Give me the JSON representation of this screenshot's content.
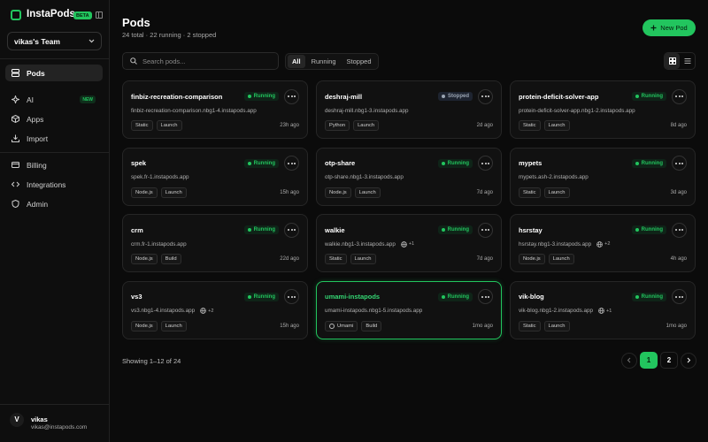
{
  "sidebar": {
    "brand": "InstaPods",
    "badge": "BETA",
    "team": "vikas's Team",
    "nav": [
      {
        "label": "Pods"
      },
      {
        "label": "AI",
        "badge": "NEW"
      },
      {
        "label": "Apps"
      },
      {
        "label": "Import"
      }
    ],
    "nav_secondary": [
      {
        "label": "Billing"
      },
      {
        "label": "Integrations"
      },
      {
        "label": "Admin"
      }
    ],
    "user": {
      "initial": "V",
      "name": "vikas",
      "email": "vikas@instapods.com"
    }
  },
  "header": {
    "title": "Pods",
    "subtitle": "24 total · 22 running · 2 stopped",
    "new_button": "New Pod"
  },
  "toolbar": {
    "search_placeholder": "Search pods...",
    "filters": [
      "All",
      "Running",
      "Stopped"
    ]
  },
  "pods": [
    {
      "name": "finbiz-recreation-comparison",
      "status": "Running",
      "url": "finbiz-recreation-comparison.nbg1-4.instapods.app",
      "tags": [
        "Static",
        "Launch"
      ],
      "time": "23h ago"
    },
    {
      "name": "deshraj-mill",
      "status": "Stopped",
      "url": "deshraj-mill.nbg1-3.instapods.app",
      "tags": [
        "Python",
        "Launch"
      ],
      "time": "2d ago"
    },
    {
      "name": "protein-deficit-solver-app",
      "status": "Running",
      "url": "protein-deficit-solver-app.nbg1-2.instapods.app",
      "tags": [
        "Static",
        "Launch"
      ],
      "time": "8d ago"
    },
    {
      "name": "spek",
      "status": "Running",
      "url": "spek.fr-1.instapods.app",
      "tags": [
        "Node.js",
        "Launch"
      ],
      "time": "15h ago"
    },
    {
      "name": "otp-share",
      "status": "Running",
      "url": "otp-share.nbg1-3.instapods.app",
      "tags": [
        "Node.js",
        "Launch"
      ],
      "time": "7d ago"
    },
    {
      "name": "mypets",
      "status": "Running",
      "url": "mypets.ash-2.instapods.app",
      "tags": [
        "Static",
        "Launch"
      ],
      "time": "3d ago"
    },
    {
      "name": "crm",
      "status": "Running",
      "url": "crm.fr-1.instapods.app",
      "tags": [
        "Node.js",
        "Build"
      ],
      "time": "22d ago"
    },
    {
      "name": "walkie",
      "status": "Running",
      "url": "walkie.nbg1-3.instapods.app",
      "extra_domains": "+1",
      "tags": [
        "Static",
        "Launch"
      ],
      "time": "7d ago"
    },
    {
      "name": "hsrstay",
      "status": "Running",
      "url": "hsrstay.nbg1-3.instapods.app",
      "extra_domains": "+2",
      "tags": [
        "Node.js",
        "Launch"
      ],
      "time": "4h ago"
    },
    {
      "name": "vs3",
      "status": "Running",
      "url": "vs3.nbg1-4.instapods.app",
      "extra_domains": "+2",
      "tags": [
        "Node.js",
        "Launch"
      ],
      "time": "15h ago"
    },
    {
      "name": "umami-instapods",
      "status": "Running",
      "url": "umami-instapods.nbg1-5.instapods.app",
      "tags": [
        "Umami",
        "Build"
      ],
      "time": "1mo ago"
    },
    {
      "name": "vik-blog",
      "status": "Running",
      "url": "vik-blog.nbg1-2.instapods.app",
      "extra_domains": "+1",
      "tags": [
        "Static",
        "Launch"
      ],
      "time": "1mo ago"
    }
  ],
  "footer": {
    "summary": "Showing 1–12 of 24",
    "pages": [
      "1",
      "2"
    ]
  }
}
